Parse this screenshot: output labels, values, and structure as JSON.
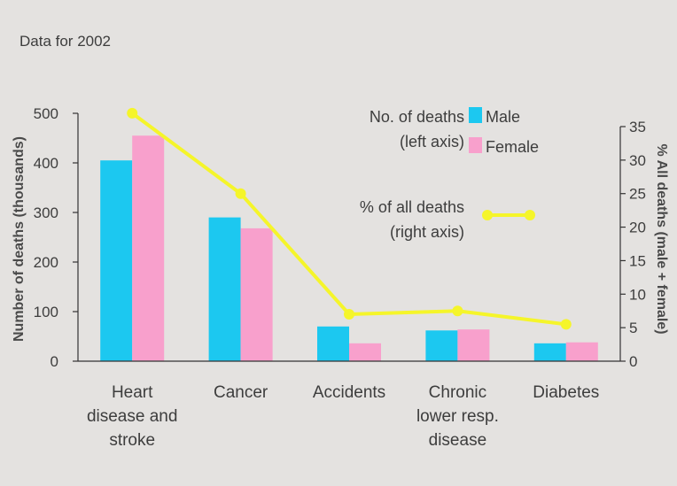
{
  "subtitle": "Data for 2002",
  "chart_data": {
    "type": "bar",
    "categories": [
      [
        "Heart",
        "disease and",
        "stroke"
      ],
      [
        "Cancer"
      ],
      [
        "Accidents"
      ],
      [
        "Chronic",
        "lower resp.",
        "disease"
      ],
      [
        "Diabetes"
      ]
    ],
    "series": [
      {
        "name": "Male",
        "values": [
          405,
          290,
          70,
          62,
          36
        ],
        "color": "#1cc8f0"
      },
      {
        "name": "Female",
        "values": [
          455,
          268,
          36,
          64,
          38
        ],
        "color": "#f8a0cc"
      }
    ],
    "line_series": {
      "values": [
        37,
        25,
        7,
        7.5,
        5.5
      ],
      "color": "#f5f52a"
    },
    "ylabel": "Number of deaths (thousands)",
    "y2label": "% All deaths (male + female)",
    "ylim": [
      0,
      500
    ],
    "yticks": [
      0,
      100,
      200,
      300,
      400,
      500
    ],
    "y2lim": [
      0,
      35
    ],
    "y2ticks": [
      0,
      5,
      10,
      15,
      20,
      25,
      30,
      35
    ],
    "legend": {
      "bars_label_line1": "No. of deaths",
      "bars_label_line2": "(left axis)",
      "male_label": "Male",
      "female_label": "Female",
      "line_label_line1": "% of all deaths",
      "line_label_line2": "(right axis)"
    }
  }
}
